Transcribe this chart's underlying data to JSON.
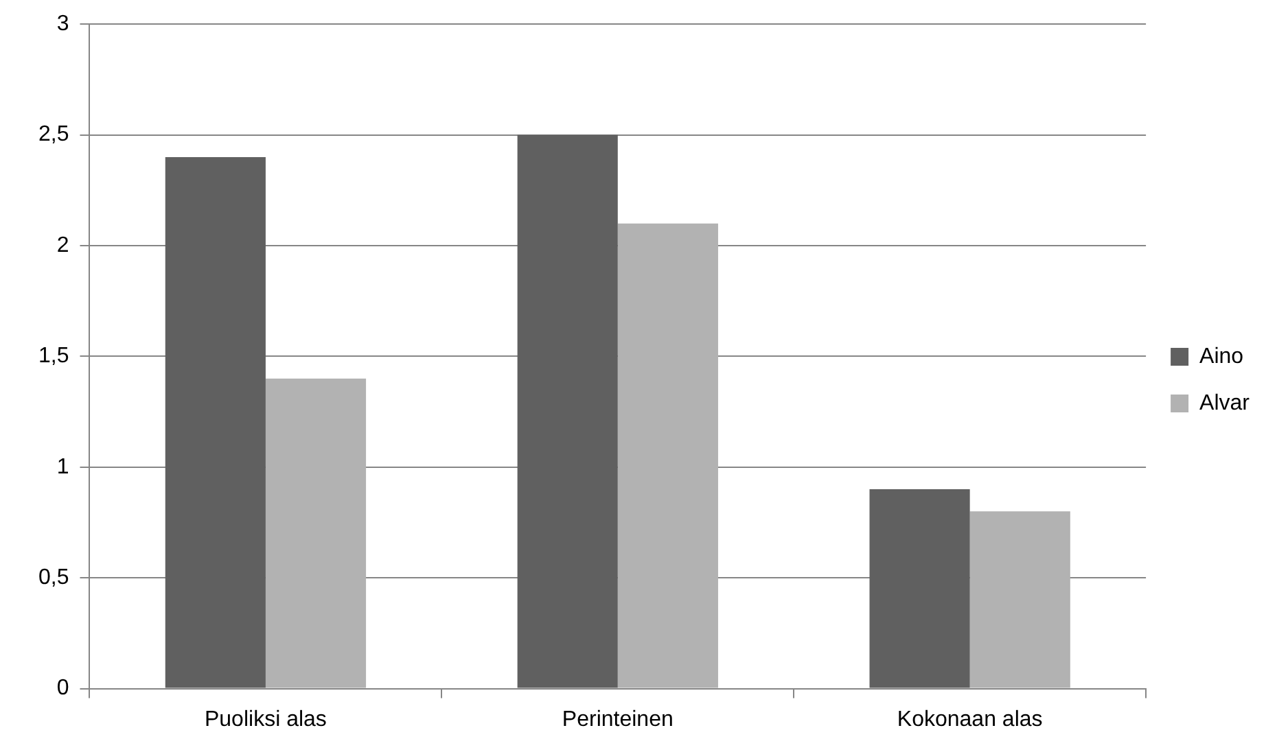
{
  "chart_data": {
    "type": "bar",
    "categories": [
      "Puoliksi alas",
      "Perinteinen",
      "Kokonaan alas"
    ],
    "series": [
      {
        "name": "Aino",
        "color": "#606060",
        "values": [
          2.4,
          2.5,
          0.9
        ]
      },
      {
        "name": "Alvar",
        "color": "#b2b2b2",
        "values": [
          1.4,
          2.1,
          0.8
        ]
      }
    ],
    "ylim": [
      0,
      3
    ],
    "yticks": [
      0,
      {
        "value": 0.5,
        "label": "0,5"
      },
      1,
      {
        "value": 1.5,
        "label": "1,5"
      },
      2,
      {
        "value": 2.5,
        "label": "2,5"
      },
      3
    ],
    "grid": "y",
    "legend": "right"
  }
}
